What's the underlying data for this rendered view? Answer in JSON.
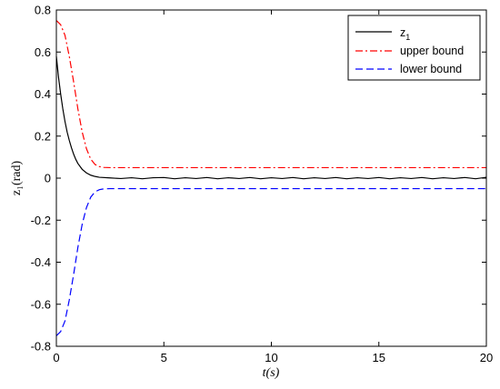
{
  "chart_data": {
    "type": "line",
    "xlabel": "t(s)",
    "ylabel": "z₁(rad)",
    "xlim": [
      0,
      20
    ],
    "ylim": [
      -0.8,
      0.8
    ],
    "xticks": [
      0,
      5,
      10,
      15,
      20
    ],
    "yticks": [
      -0.8,
      -0.6,
      -0.4,
      -0.2,
      0,
      0.2,
      0.4,
      0.6,
      0.8
    ],
    "xtick_labels": [
      "0",
      "5",
      "10",
      "15",
      "20"
    ],
    "ytick_labels": [
      "-0.8",
      "-0.6",
      "-0.4",
      "-0.2",
      "0",
      "0.2",
      "0.4",
      "0.6",
      "0.8"
    ],
    "grid": false,
    "legend_position": "top-right",
    "series": [
      {
        "name": "z",
        "name_subscript": "1",
        "color": "#000000",
        "style": "solid",
        "x": [
          0,
          0.1,
          0.2,
          0.3,
          0.4,
          0.5,
          0.6,
          0.7,
          0.8,
          0.9,
          1.0,
          1.2,
          1.4,
          1.6,
          1.8,
          2.0,
          2.5,
          3,
          3.5,
          4,
          4.5,
          5,
          5.5,
          6,
          6.5,
          7,
          7.5,
          8,
          8.5,
          9,
          9.5,
          10,
          10.5,
          11,
          11.5,
          12,
          12.5,
          13,
          13.5,
          14,
          14.5,
          15,
          15.5,
          16,
          16.5,
          17,
          17.5,
          18,
          18.5,
          19,
          19.5,
          20
        ],
        "y": [
          0.58,
          0.48,
          0.4,
          0.33,
          0.27,
          0.22,
          0.18,
          0.145,
          0.115,
          0.09,
          0.07,
          0.042,
          0.025,
          0.014,
          0.008,
          0.004,
          0.001,
          -0.002,
          0.002,
          -0.003,
          0.002,
          0.003,
          -0.003,
          0.002,
          -0.002,
          0.003,
          -0.003,
          0.002,
          -0.002,
          0.003,
          -0.003,
          0.002,
          -0.002,
          0.003,
          -0.003,
          0.002,
          -0.002,
          0.003,
          -0.003,
          0.002,
          -0.002,
          0.003,
          -0.003,
          0.002,
          -0.002,
          0.003,
          -0.003,
          0.002,
          -0.002,
          0.003,
          -0.003,
          0.004
        ]
      },
      {
        "name": "upper bound",
        "color": "#ff0000",
        "style": "dashdot",
        "x": [
          0,
          0.2,
          0.4,
          0.6,
          0.8,
          1.0,
          1.2,
          1.4,
          1.6,
          1.8,
          2.0,
          2.2,
          2.5,
          3,
          20
        ],
        "y": [
          0.75,
          0.73,
          0.68,
          0.58,
          0.46,
          0.33,
          0.22,
          0.14,
          0.09,
          0.065,
          0.055,
          0.051,
          0.05,
          0.05,
          0.05
        ]
      },
      {
        "name": "lower bound",
        "color": "#0000ff",
        "style": "dashed",
        "x": [
          0,
          0.2,
          0.4,
          0.6,
          0.8,
          1.0,
          1.2,
          1.4,
          1.6,
          1.8,
          2.0,
          2.2,
          2.5,
          3,
          20
        ],
        "y": [
          -0.75,
          -0.73,
          -0.68,
          -0.58,
          -0.46,
          -0.33,
          -0.22,
          -0.14,
          -0.09,
          -0.065,
          -0.055,
          -0.051,
          -0.05,
          -0.05,
          -0.05
        ]
      }
    ]
  }
}
